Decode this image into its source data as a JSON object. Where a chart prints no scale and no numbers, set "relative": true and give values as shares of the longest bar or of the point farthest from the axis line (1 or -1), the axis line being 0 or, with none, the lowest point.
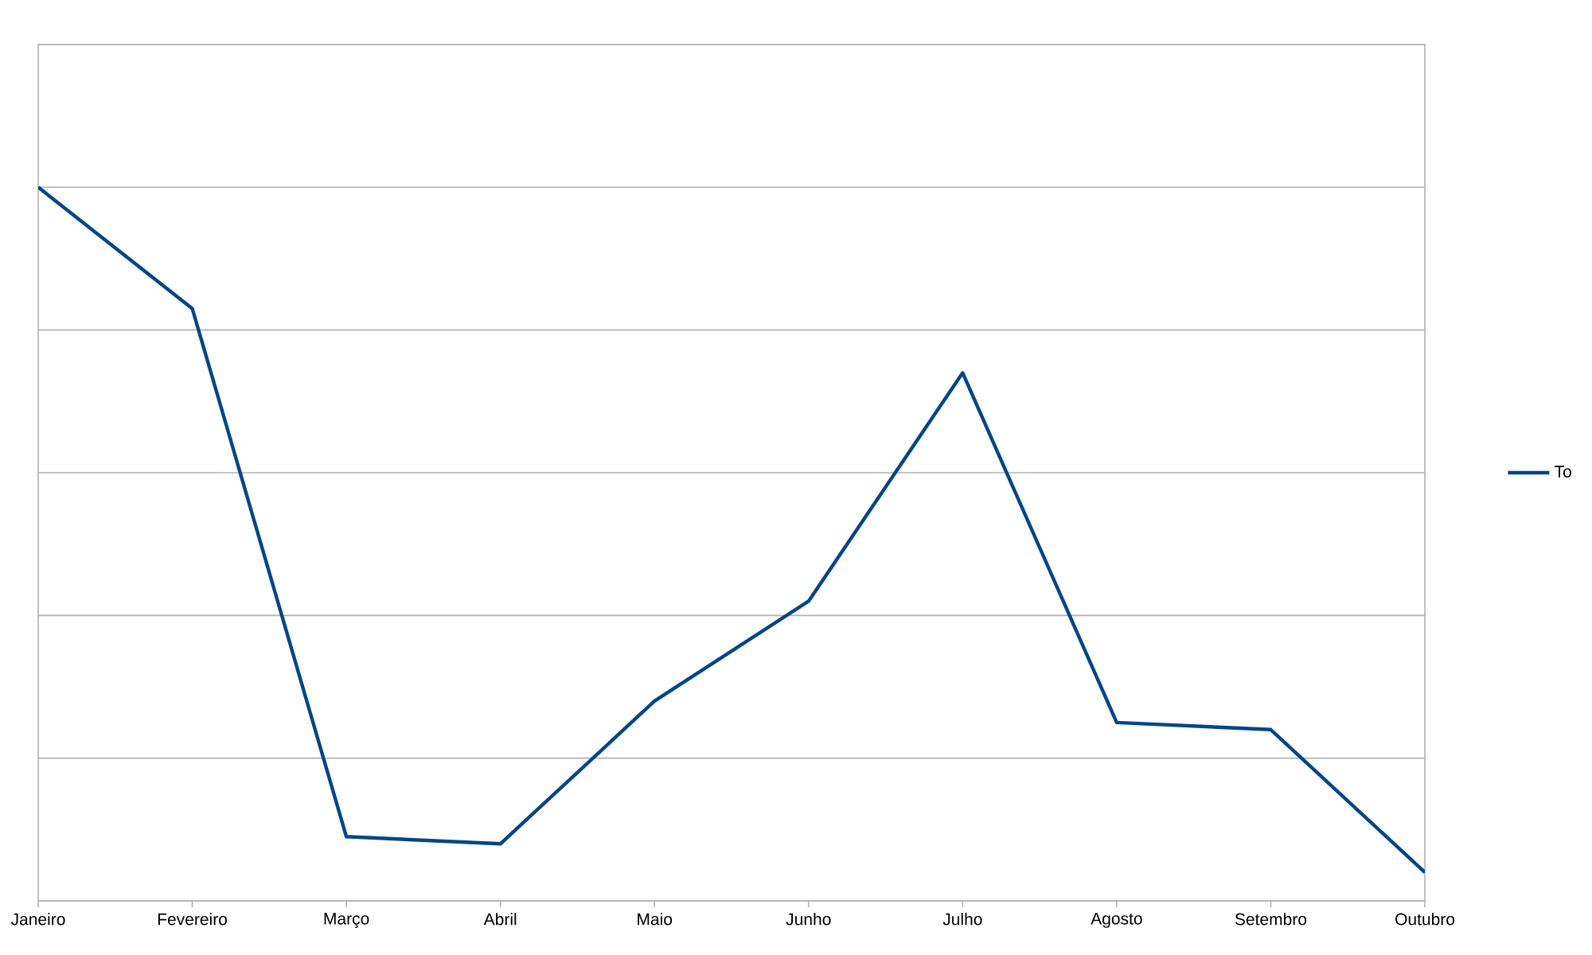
{
  "chart_data": {
    "type": "line",
    "relative": true,
    "categories": [
      "Janeiro",
      "Fevereiro",
      "Março",
      "Abril",
      "Maio",
      "Junho",
      "Julho",
      "Agosto",
      "Setembro",
      "Outubro"
    ],
    "series": [
      {
        "name": "To",
        "color": "#004586",
        "values": [
          1,
          0.83,
          0.09,
          0.08,
          0.28,
          0.42,
          0.74,
          0.25,
          0.24,
          0.04
        ]
      }
    ],
    "grid": "y",
    "legend": "right"
  }
}
